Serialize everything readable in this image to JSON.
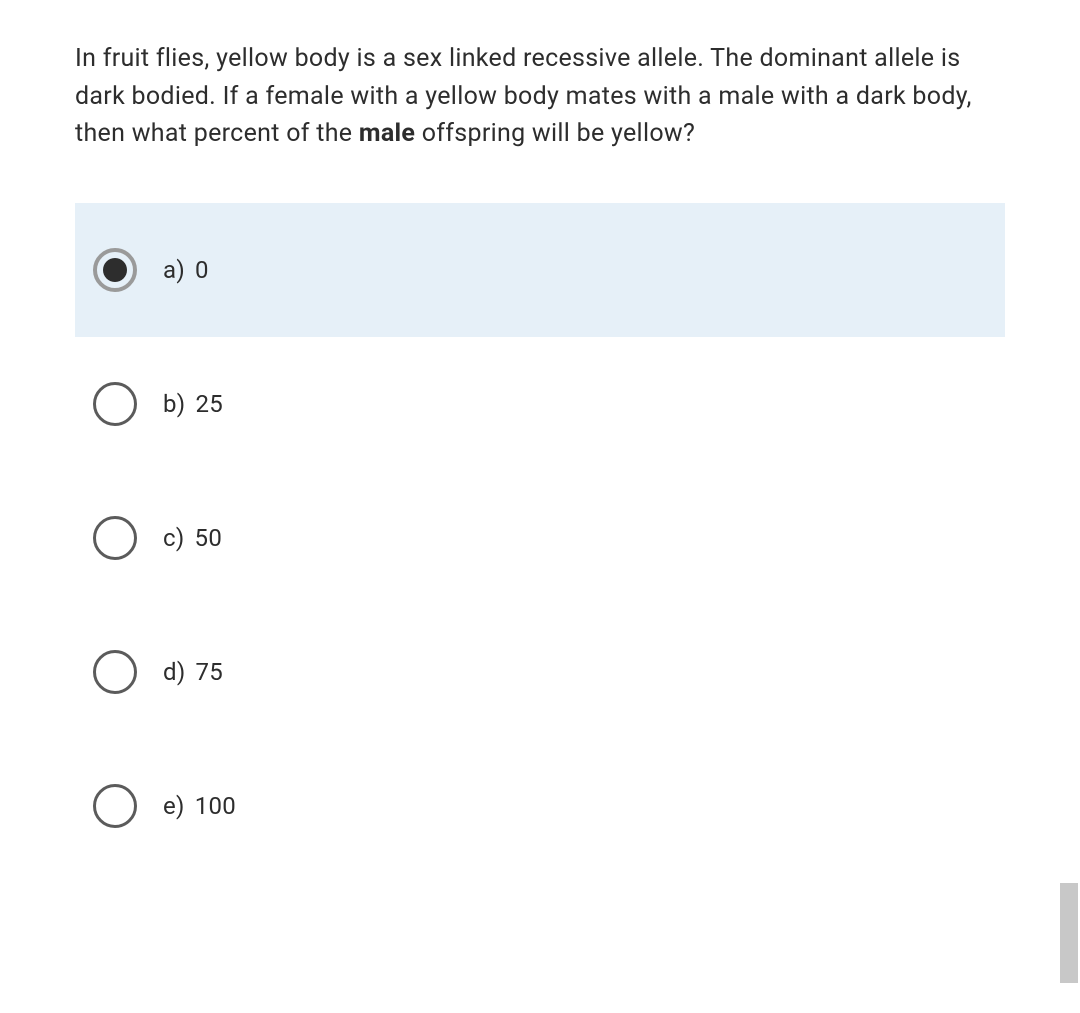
{
  "question": {
    "text_parts": [
      {
        "text": "In fruit flies, yellow body is a  sex linked recessive allele. The dominant allele is dark bodied. If a female with a yellow body mates with a male with a dark body, then what percent of the ",
        "bold": false
      },
      {
        "text": "male",
        "bold": true
      },
      {
        "text": " offspring will be yellow?",
        "bold": false
      }
    ]
  },
  "options": [
    {
      "letter": "a)",
      "value": "0",
      "selected": true
    },
    {
      "letter": "b)",
      "value": "25",
      "selected": false
    },
    {
      "letter": "c)",
      "value": "50",
      "selected": false
    },
    {
      "letter": "d)",
      "value": "75",
      "selected": false
    },
    {
      "letter": "e)",
      "value": "100",
      "selected": false
    }
  ],
  "colors": {
    "selected_bg": "#e6f0f8",
    "text": "#2d2d2d",
    "radio_border": "#5b5b5b",
    "radio_selected_border": "#9a9a9a",
    "scrollbar": "#c8c8c8"
  }
}
